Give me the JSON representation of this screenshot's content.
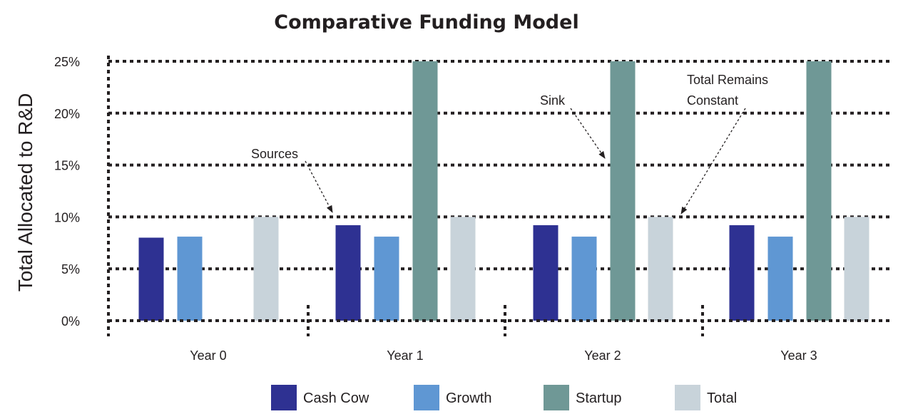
{
  "chart_data": {
    "type": "bar",
    "title": "Comparative Funding Model",
    "xlabel": "",
    "ylabel": "Total Allocated to R&D",
    "ylim": [
      0,
      25
    ],
    "yticks": [
      "0%",
      "5%",
      "10%",
      "15%",
      "20%",
      "25%"
    ],
    "ytick_values": [
      0,
      5,
      10,
      15,
      20,
      25
    ],
    "grid": true,
    "legend_placement": "bottom",
    "categories": [
      "Year 0",
      "Year 1",
      "Year 2",
      "Year 3"
    ],
    "series": [
      {
        "name": "Cash Cow",
        "color": "#2e3192",
        "values": [
          8.0,
          9.2,
          9.2,
          9.2
        ]
      },
      {
        "name": "Growth",
        "color": "#5f97d3",
        "values": [
          8.1,
          8.1,
          8.1,
          8.1
        ]
      },
      {
        "name": "Startup",
        "color": "#6f9896",
        "values": [
          0,
          25,
          25,
          25
        ]
      },
      {
        "name": "Total",
        "color": "#c8d3da",
        "values": [
          10,
          10,
          10,
          10
        ]
      }
    ],
    "annotations": [
      {
        "text": "Sources",
        "target_category": "Year 1",
        "target_series": "Cash Cow"
      },
      {
        "text": "Sink",
        "target_category": "Year 2",
        "target_series": "Startup"
      },
      {
        "text": "Total Remains",
        "text2": "Constant",
        "target_category": "Year 2",
        "target_series": "Total"
      }
    ]
  }
}
